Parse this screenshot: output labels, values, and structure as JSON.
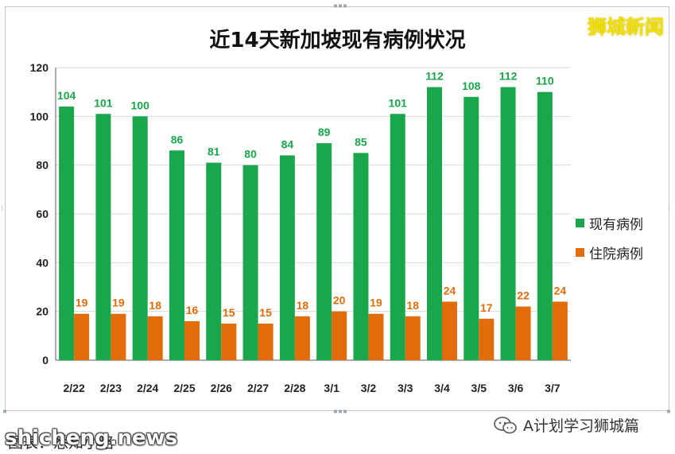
{
  "brand": "狮城新闻",
  "caption": "图表：悉知小略",
  "watermark": "shicheng.news",
  "wechat_account": "A计划学习狮城篇",
  "colors": {
    "current": "#1aa64a",
    "hospital": "#e36c0a",
    "grid": "#d9d9d9",
    "axis": "#595959"
  },
  "chart_data": {
    "type": "bar",
    "title": "近14天新加坡现有病例状况",
    "categories": [
      "2/22",
      "2/23",
      "2/24",
      "2/25",
      "2/26",
      "2/27",
      "2/28",
      "3/1",
      "3/2",
      "3/3",
      "3/4",
      "3/5",
      "3/6",
      "3/7"
    ],
    "series": [
      {
        "name": "现有病例",
        "values": [
          104,
          101,
          100,
          86,
          81,
          80,
          84,
          89,
          85,
          101,
          112,
          108,
          112,
          110
        ]
      },
      {
        "name": "住院病例",
        "values": [
          19,
          19,
          18,
          16,
          15,
          15,
          18,
          20,
          19,
          18,
          24,
          17,
          22,
          24
        ]
      }
    ],
    "ylim": [
      0,
      120
    ],
    "yticks": [
      0,
      20,
      40,
      60,
      80,
      100,
      120
    ],
    "grid": true,
    "legend": "right"
  }
}
